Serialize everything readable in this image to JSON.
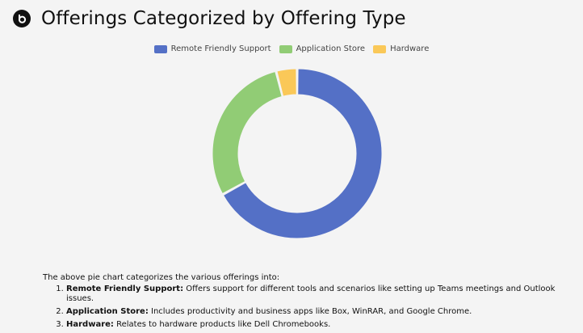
{
  "header": {
    "title": "Offerings Categorized by Offering Type",
    "logo_icon": "beats-logo-icon"
  },
  "chart_data": {
    "type": "pie",
    "variant": "doughnut",
    "title": "",
    "legend_position": "top",
    "categories": [
      "Remote Friendly Support",
      "Application Store",
      "Hardware"
    ],
    "values": [
      67,
      29,
      4
    ],
    "colors": [
      "#5470c6",
      "#91cc75",
      "#fac858"
    ]
  },
  "description": {
    "intro": "The above pie chart categorizes the various offerings into:",
    "items": [
      {
        "term": "Remote Friendly Support:",
        "text": " Offers support for different tools and scenarios like setting up Teams meetings and Outlook issues."
      },
      {
        "term": "Application Store:",
        "text": " Includes productivity and business apps like Box, WinRAR, and Google Chrome."
      },
      {
        "term": "Hardware:",
        "text": " Relates to hardware products like Dell Chromebooks."
      }
    ]
  }
}
